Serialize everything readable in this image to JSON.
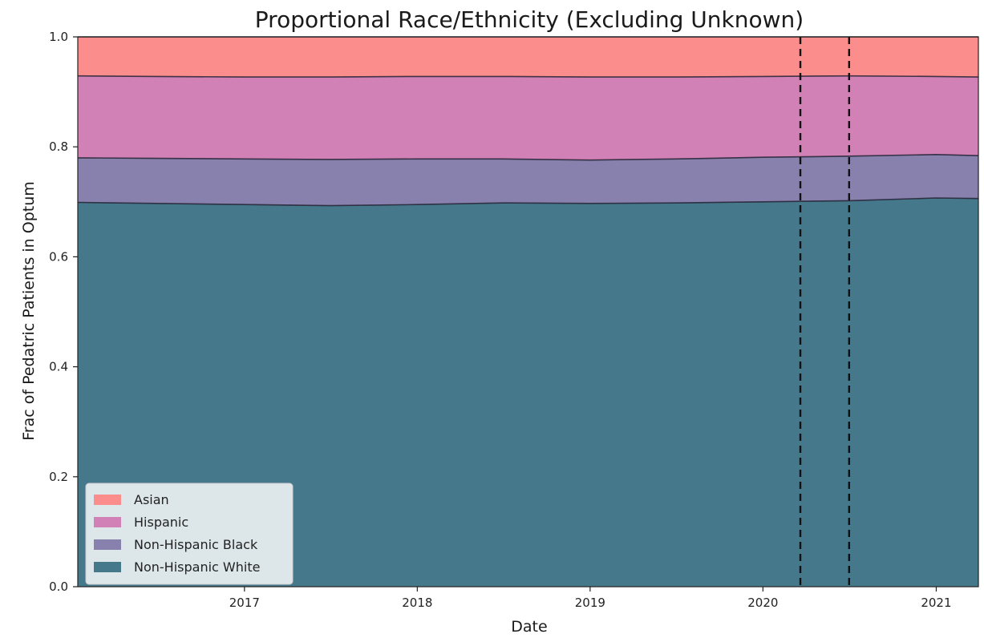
{
  "chart_data": {
    "type": "area",
    "stacked": true,
    "title": "Proportional Race/Ethnicity (Excluding Unknown)",
    "xlabel": "Date",
    "ylabel": "Frac of Pedatric Patients in Optum",
    "xlim": [
      "2016-01-15",
      "2021-03-31"
    ],
    "ylim": [
      0,
      1.0
    ],
    "x_ticks": [
      "2017",
      "2018",
      "2019",
      "2020",
      "2021"
    ],
    "y_ticks": [
      "0.0",
      "0.2",
      "0.4",
      "0.6",
      "0.8",
      "1.0"
    ],
    "x": [
      "2016-01-15",
      "2016-07-01",
      "2017-01-01",
      "2017-07-01",
      "2018-01-01",
      "2018-07-01",
      "2019-01-01",
      "2019-07-01",
      "2020-01-01",
      "2020-07-01",
      "2021-01-01",
      "2021-03-31"
    ],
    "series": [
      {
        "name": "Non-Hispanic White",
        "color": "#46788c",
        "values": [
          0.699,
          0.697,
          0.695,
          0.693,
          0.695,
          0.698,
          0.697,
          0.698,
          0.7,
          0.702,
          0.707,
          0.706
        ]
      },
      {
        "name": "Non-Hispanic Black",
        "color": "#8880ad",
        "values": [
          0.081,
          0.082,
          0.083,
          0.084,
          0.083,
          0.08,
          0.079,
          0.08,
          0.081,
          0.081,
          0.079,
          0.078
        ]
      },
      {
        "name": "Hispanic",
        "color": "#d181b5",
        "values": [
          0.149,
          0.149,
          0.149,
          0.15,
          0.15,
          0.15,
          0.151,
          0.149,
          0.147,
          0.146,
          0.142,
          0.143
        ]
      },
      {
        "name": "Asian",
        "color": "#fc8d8d",
        "values": [
          0.071,
          0.072,
          0.073,
          0.073,
          0.072,
          0.072,
          0.073,
          0.073,
          0.072,
          0.071,
          0.072,
          0.073
        ]
      }
    ],
    "vlines": [
      "2020-03-20",
      "2020-07-01"
    ],
    "legend_location": "lower-left",
    "legend_order": [
      "Asian",
      "Hispanic",
      "Non-Hispanic Black",
      "Non-Hispanic White"
    ]
  }
}
